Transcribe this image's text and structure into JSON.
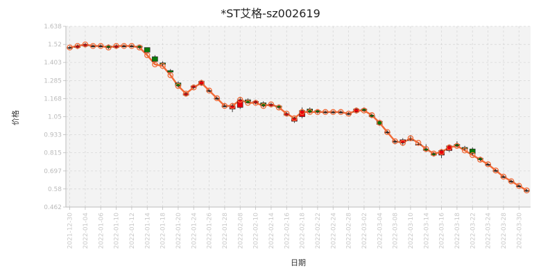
{
  "chart_data": {
    "type": "candlestick",
    "title": "*ST艾格-sz002619",
    "xlabel": "日期",
    "ylabel": "价格",
    "ylim": [
      0.462,
      1.638
    ],
    "y_ticks": [
      "0.462",
      "0.58",
      "0.697",
      "0.815",
      "0.933",
      "1.05",
      "1.168",
      "1.285",
      "1.403",
      "1.52",
      "1.638"
    ],
    "grid": true,
    "dates": [
      "2021-12-30",
      "2021-12-31",
      "2022-01-04",
      "2022-01-05",
      "2022-01-06",
      "2022-01-07",
      "2022-01-10",
      "2022-01-11",
      "2022-01-12",
      "2022-01-13",
      "2022-01-14",
      "2022-01-17",
      "2022-01-18",
      "2022-01-19",
      "2022-01-20",
      "2022-01-21",
      "2022-01-24",
      "2022-01-25",
      "2022-01-26",
      "2022-01-27",
      "2022-01-28",
      "2022-02-07",
      "2022-02-08",
      "2022-02-09",
      "2022-02-10",
      "2022-02-11",
      "2022-02-14",
      "2022-02-15",
      "2022-02-16",
      "2022-02-17",
      "2022-02-18",
      "2022-02-21",
      "2022-02-22",
      "2022-02-23",
      "2022-02-24",
      "2022-02-25",
      "2022-02-28",
      "2022-03-01",
      "2022-03-02",
      "2022-03-03",
      "2022-03-04",
      "2022-03-07",
      "2022-03-08",
      "2022-03-09",
      "2022-03-10",
      "2022-03-11",
      "2022-03-14",
      "2022-03-15",
      "2022-03-16",
      "2022-03-17",
      "2022-03-18",
      "2022-03-21",
      "2022-03-22",
      "2022-03-23",
      "2022-03-24",
      "2022-03-25",
      "2022-03-28",
      "2022-03-29",
      "2022-03-30",
      "2022-03-31"
    ],
    "x_tick_labels": [
      "2021-12-30",
      "2022-01-04",
      "2022-01-06",
      "2022-01-10",
      "2022-01-12",
      "2022-01-14",
      "2022-01-18",
      "2022-01-20",
      "2022-01-24",
      "2022-01-26",
      "2022-01-28",
      "2022-02-08",
      "2022-02-10",
      "2022-02-14",
      "2022-02-16",
      "2022-02-18",
      "2022-02-22",
      "2022-02-24",
      "2022-02-28",
      "2022-03-02",
      "2022-03-04",
      "2022-03-08",
      "2022-03-10",
      "2022-03-14",
      "2022-03-16",
      "2022-03-18",
      "2022-03-22",
      "2022-03-24",
      "2022-03-28",
      "2022-03-30"
    ],
    "ohlc": [
      [
        1.5,
        1.51,
        1.49,
        1.5
      ],
      [
        1.5,
        1.52,
        1.49,
        1.51
      ],
      [
        1.51,
        1.53,
        1.5,
        1.52
      ],
      [
        1.51,
        1.52,
        1.5,
        1.51
      ],
      [
        1.51,
        1.52,
        1.5,
        1.51
      ],
      [
        1.51,
        1.52,
        1.49,
        1.5
      ],
      [
        1.5,
        1.52,
        1.49,
        1.51
      ],
      [
        1.51,
        1.52,
        1.5,
        1.51
      ],
      [
        1.51,
        1.52,
        1.5,
        1.51
      ],
      [
        1.51,
        1.52,
        1.49,
        1.5
      ],
      [
        1.5,
        1.5,
        1.46,
        1.47
      ],
      [
        1.44,
        1.45,
        1.4,
        1.41
      ],
      [
        1.4,
        1.41,
        1.38,
        1.39
      ],
      [
        1.35,
        1.36,
        1.33,
        1.34
      ],
      [
        1.27,
        1.28,
        1.24,
        1.25
      ],
      [
        1.19,
        1.21,
        1.18,
        1.2
      ],
      [
        1.24,
        1.26,
        1.23,
        1.25
      ],
      [
        1.26,
        1.29,
        1.25,
        1.28
      ],
      [
        1.22,
        1.23,
        1.21,
        1.22
      ],
      [
        1.17,
        1.18,
        1.16,
        1.17
      ],
      [
        1.12,
        1.14,
        1.11,
        1.12
      ],
      [
        1.1,
        1.14,
        1.08,
        1.12
      ],
      [
        1.11,
        1.18,
        1.1,
        1.16
      ],
      [
        1.16,
        1.17,
        1.14,
        1.14
      ],
      [
        1.14,
        1.16,
        1.13,
        1.15
      ],
      [
        1.14,
        1.15,
        1.11,
        1.12
      ],
      [
        1.12,
        1.14,
        1.11,
        1.13
      ],
      [
        1.12,
        1.13,
        1.1,
        1.11
      ],
      [
        1.06,
        1.08,
        1.05,
        1.07
      ],
      [
        1.02,
        1.05,
        1.01,
        1.04
      ],
      [
        1.05,
        1.11,
        1.04,
        1.09
      ],
      [
        1.1,
        1.11,
        1.07,
        1.08
      ],
      [
        1.09,
        1.1,
        1.07,
        1.08
      ],
      [
        1.08,
        1.09,
        1.07,
        1.08
      ],
      [
        1.08,
        1.09,
        1.07,
        1.08
      ],
      [
        1.08,
        1.09,
        1.07,
        1.08
      ],
      [
        1.07,
        1.08,
        1.06,
        1.07
      ],
      [
        1.08,
        1.11,
        1.07,
        1.1
      ],
      [
        1.1,
        1.11,
        1.08,
        1.09
      ],
      [
        1.06,
        1.07,
        1.04,
        1.05
      ],
      [
        1.02,
        1.03,
        0.99,
        1.0
      ],
      [
        0.95,
        0.96,
        0.94,
        0.95
      ],
      [
        0.89,
        0.9,
        0.87,
        0.89
      ],
      [
        0.88,
        0.91,
        0.86,
        0.9
      ],
      [
        0.9,
        0.93,
        0.89,
        0.9
      ],
      [
        0.87,
        0.88,
        0.86,
        0.87
      ],
      [
        0.84,
        0.87,
        0.82,
        0.83
      ],
      [
        0.81,
        0.82,
        0.79,
        0.8
      ],
      [
        0.8,
        0.84,
        0.78,
        0.83
      ],
      [
        0.83,
        0.87,
        0.82,
        0.86
      ],
      [
        0.87,
        0.89,
        0.85,
        0.86
      ],
      [
        0.85,
        0.86,
        0.83,
        0.84
      ],
      [
        0.84,
        0.85,
        0.8,
        0.81
      ],
      [
        0.78,
        0.79,
        0.76,
        0.77
      ],
      [
        0.74,
        0.75,
        0.73,
        0.74
      ],
      [
        0.7,
        0.71,
        0.69,
        0.7
      ],
      [
        0.66,
        0.67,
        0.65,
        0.66
      ],
      [
        0.63,
        0.64,
        0.62,
        0.63
      ],
      [
        0.6,
        0.61,
        0.59,
        0.6
      ],
      [
        0.57,
        0.58,
        0.56,
        0.57
      ]
    ],
    "line": [
      1.5,
      1.51,
      1.52,
      1.51,
      1.51,
      1.5,
      1.51,
      1.51,
      1.51,
      1.5,
      1.45,
      1.39,
      1.38,
      1.32,
      1.25,
      1.2,
      1.24,
      1.27,
      1.22,
      1.17,
      1.12,
      1.12,
      1.16,
      1.14,
      1.14,
      1.12,
      1.13,
      1.11,
      1.07,
      1.04,
      1.08,
      1.08,
      1.08,
      1.08,
      1.08,
      1.08,
      1.07,
      1.09,
      1.09,
      1.06,
      1.01,
      0.95,
      0.89,
      0.88,
      0.91,
      0.88,
      0.84,
      0.81,
      0.82,
      0.85,
      0.86,
      0.83,
      0.8,
      0.77,
      0.74,
      0.7,
      0.66,
      0.63,
      0.6,
      0.57
    ],
    "up_color": "#e8000b",
    "down_color": "#0a7a0a",
    "line_color": "#f26b38"
  }
}
